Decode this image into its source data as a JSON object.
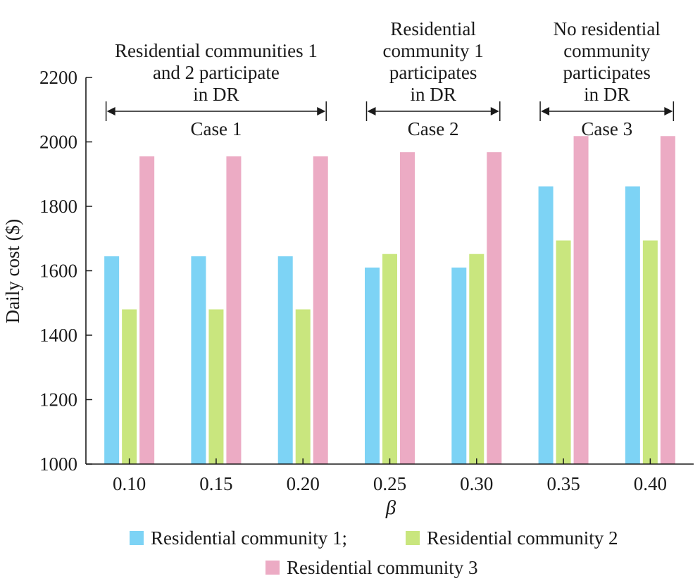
{
  "chart_data": {
    "type": "bar",
    "xlabel": "β",
    "ylabel": "Daily cost ($)",
    "ylim": [
      1000,
      2200
    ],
    "yticks": [
      1000,
      1200,
      1400,
      1600,
      1800,
      2000,
      2200
    ],
    "categories": [
      "0.10",
      "0.15",
      "0.20",
      "0.25",
      "0.30",
      "0.35",
      "0.40"
    ],
    "series": [
      {
        "name": "Residential community 1;",
        "color": "#7dd3f5",
        "values": [
          1645,
          1645,
          1645,
          1610,
          1610,
          1862,
          1862
        ]
      },
      {
        "name": "Residential community 2",
        "color": "#c9e67e",
        "values": [
          1480,
          1480,
          1480,
          1652,
          1652,
          1694,
          1694
        ]
      },
      {
        "name": "Residential community 3",
        "color": "#ecabc4",
        "values": [
          1955,
          1955,
          1955,
          1968,
          1968,
          2018,
          2018
        ]
      }
    ],
    "legend": "bottom",
    "grid": false,
    "annotations": [
      {
        "case_label": "Case 1",
        "lines": [
          "Residential communities 1",
          "and 2 participate",
          "in DR"
        ],
        "from_category": 0,
        "to_category": 2
      },
      {
        "case_label": "Case 2",
        "lines": [
          "Residential",
          "community 1",
          "participates",
          "in DR"
        ],
        "from_category": 3,
        "to_category": 4
      },
      {
        "case_label": "Case 3",
        "lines": [
          "No residential",
          "community",
          "participates",
          "in DR"
        ],
        "from_category": 5,
        "to_category": 6
      }
    ]
  }
}
